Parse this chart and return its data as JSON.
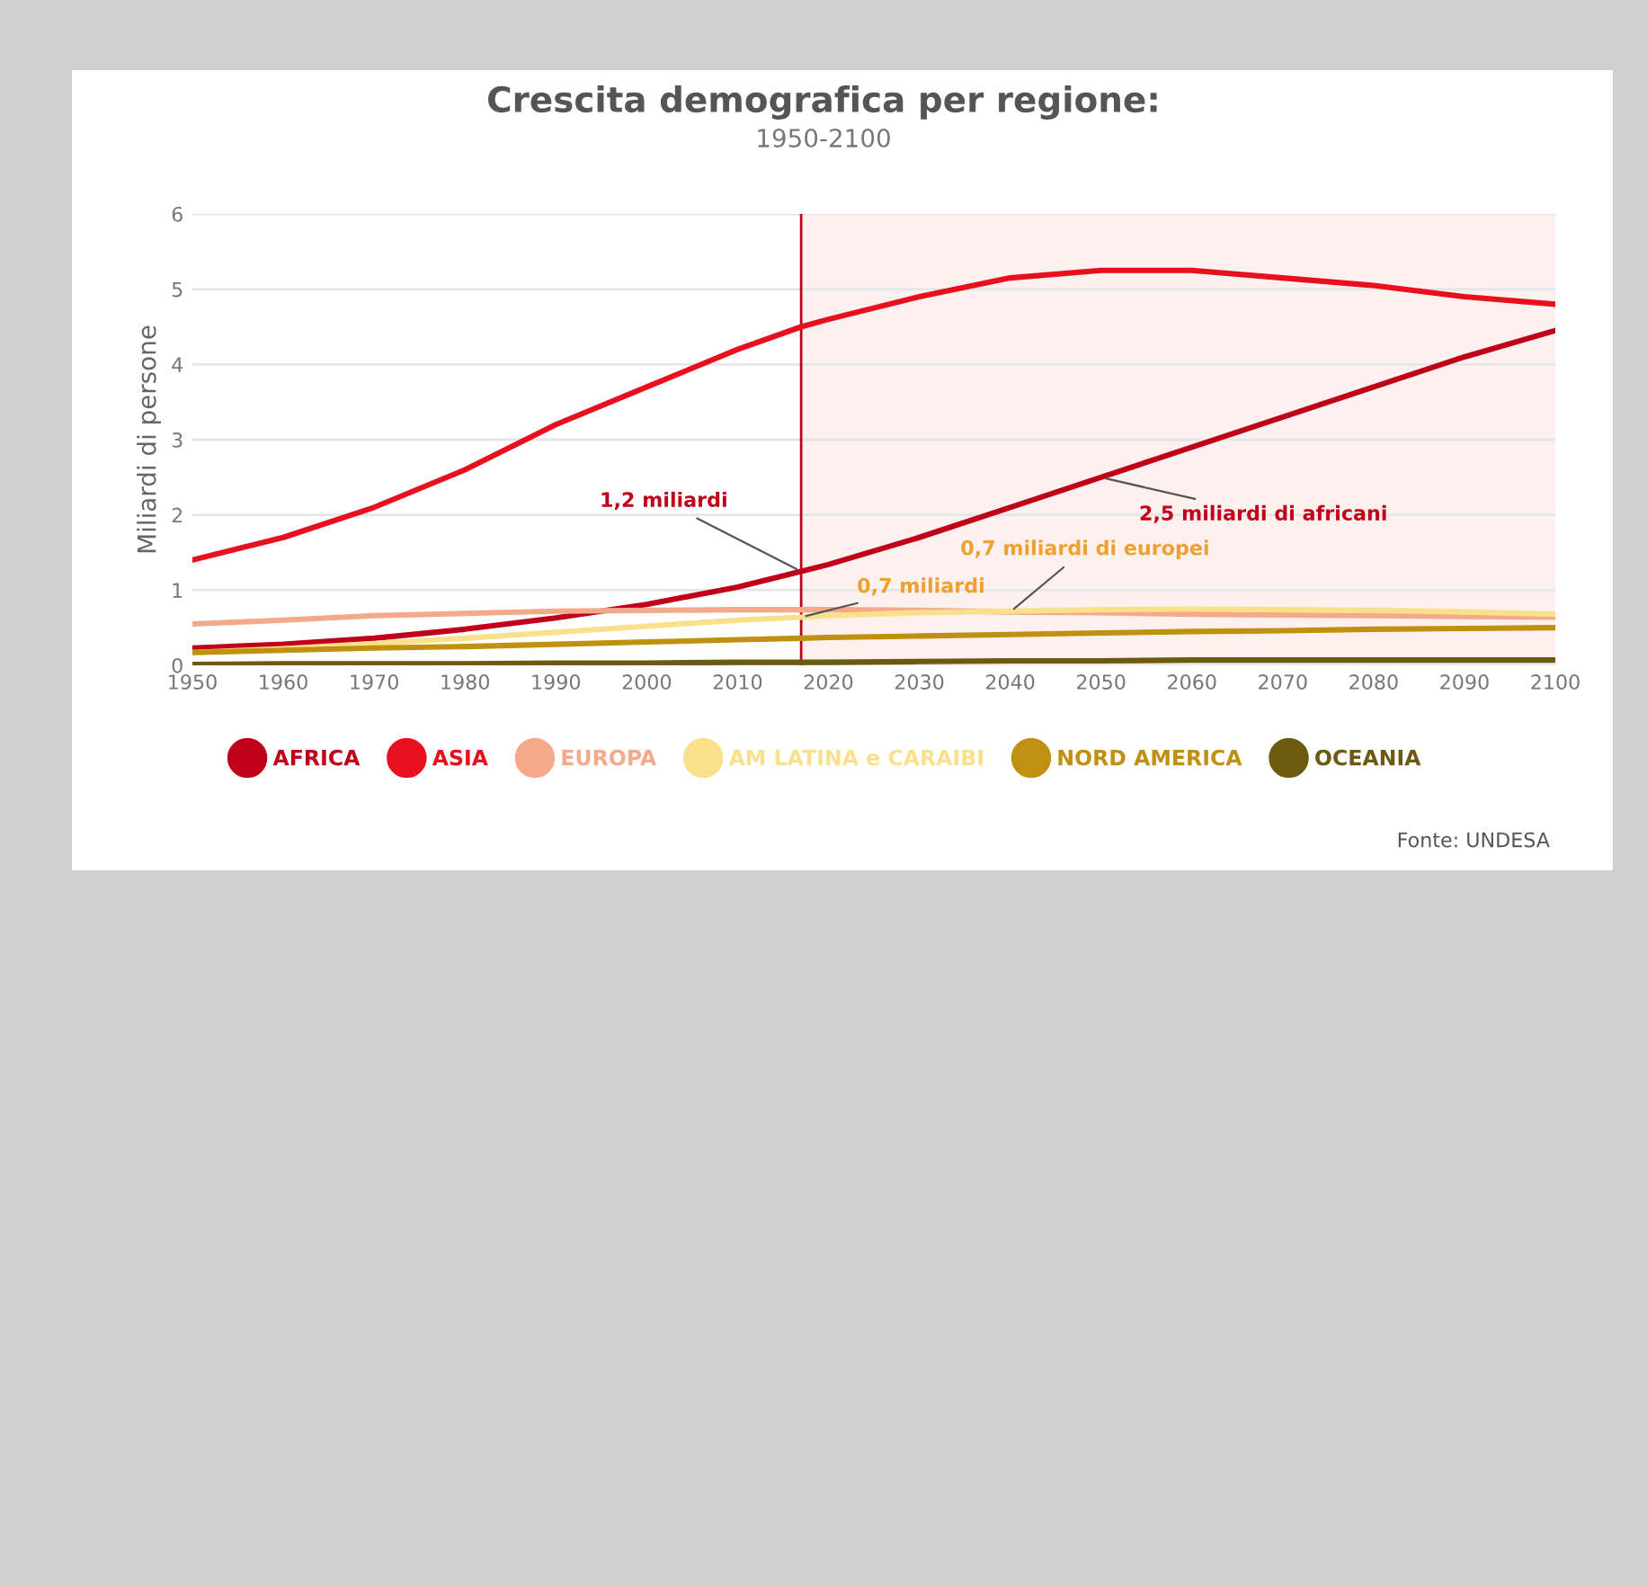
{
  "chart_data": {
    "type": "line",
    "title": "Crescita demografica per regione:",
    "subtitle": "1950-2100",
    "ylabel": "Miliardi di persone",
    "x": [
      1950,
      1960,
      1970,
      1980,
      1990,
      2000,
      2010,
      2017,
      2020,
      2030,
      2040,
      2050,
      2060,
      2070,
      2080,
      2090,
      2100
    ],
    "series": [
      {
        "name": "AFRICA",
        "color": "#c0001a",
        "values": [
          0.23,
          0.28,
          0.36,
          0.48,
          0.63,
          0.81,
          1.04,
          1.25,
          1.34,
          1.7,
          2.1,
          2.5,
          2.9,
          3.3,
          3.7,
          4.1,
          4.45
        ]
      },
      {
        "name": "ASIA",
        "color": "#e8101e",
        "values": [
          1.4,
          1.7,
          2.1,
          2.6,
          3.2,
          3.7,
          4.2,
          4.5,
          4.6,
          4.9,
          5.15,
          5.25,
          5.25,
          5.15,
          5.05,
          4.9,
          4.8
        ]
      },
      {
        "name": "EUROPA",
        "color": "#f4a98a",
        "values": [
          0.55,
          0.6,
          0.66,
          0.69,
          0.72,
          0.73,
          0.74,
          0.74,
          0.74,
          0.73,
          0.71,
          0.7,
          0.68,
          0.67,
          0.66,
          0.65,
          0.64
        ]
      },
      {
        "name": "AM LATINA e CARAIBI",
        "color": "#f9e08a",
        "values": [
          0.17,
          0.22,
          0.29,
          0.36,
          0.44,
          0.52,
          0.6,
          0.64,
          0.66,
          0.7,
          0.72,
          0.74,
          0.75,
          0.74,
          0.73,
          0.71,
          0.68
        ]
      },
      {
        "name": "NORD AMERICA",
        "color": "#c09010",
        "values": [
          0.17,
          0.2,
          0.23,
          0.25,
          0.28,
          0.31,
          0.34,
          0.36,
          0.37,
          0.39,
          0.41,
          0.43,
          0.45,
          0.46,
          0.48,
          0.49,
          0.5
        ]
      },
      {
        "name": "OCEANIA",
        "color": "#6b5a10",
        "values": [
          0.01,
          0.02,
          0.02,
          0.02,
          0.03,
          0.03,
          0.04,
          0.04,
          0.04,
          0.05,
          0.06,
          0.06,
          0.07,
          0.07,
          0.07,
          0.07,
          0.07
        ]
      }
    ],
    "xlim": [
      1950,
      2100
    ],
    "ylim": [
      0,
      6
    ],
    "xticks": [
      1950,
      1960,
      1970,
      1980,
      1990,
      2000,
      2010,
      2020,
      2030,
      2040,
      2050,
      2060,
      2070,
      2080,
      2090,
      2100
    ],
    "yticks": [
      0,
      1,
      2,
      3,
      4,
      5,
      6
    ],
    "grid": "y",
    "legend": "bottom",
    "marker": "none",
    "line_style": "solid",
    "ref_lines": [
      {
        "axis": "x",
        "value": 2017,
        "color": "#c0001a"
      }
    ],
    "bands": [
      {
        "axis": "x",
        "from": 2017,
        "to": 2100,
        "color": "#fdf1ef"
      }
    ],
    "annotations": [
      {
        "text": "1,2 miliardi",
        "x": 2017,
        "y": 1.25
      },
      {
        "text": "2,5 miliardi di africani",
        "x": 2050,
        "y": 2.5
      },
      {
        "text": "0,7 miliardi",
        "x": 2017,
        "y": 0.64
      },
      {
        "text": "0,7 miliardi di europei",
        "x": 2040,
        "y": 0.71
      },
      "Fonte: UNDESA"
    ]
  }
}
